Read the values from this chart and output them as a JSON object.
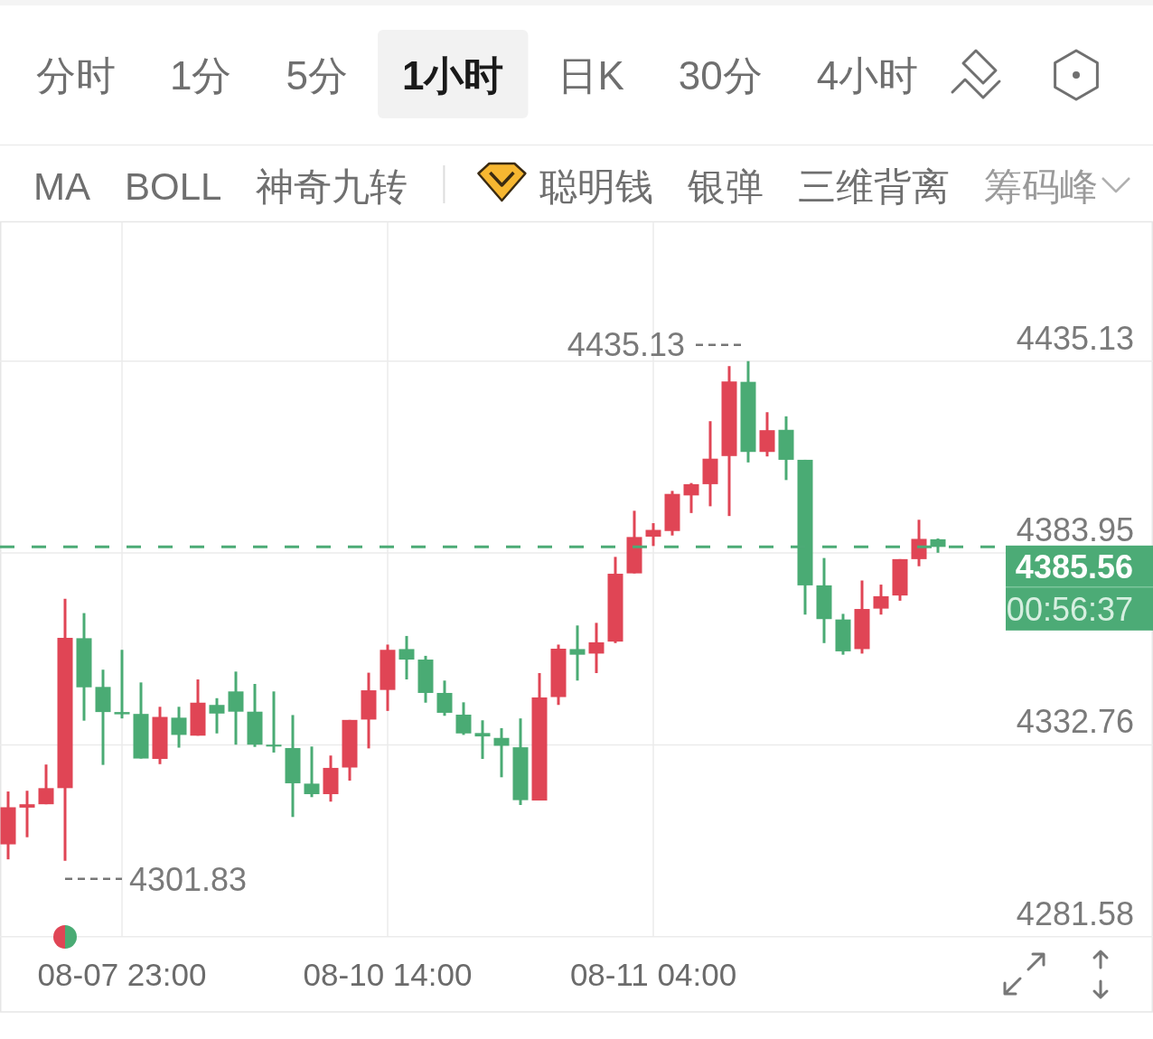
{
  "chart_data": {
    "type": "candlestick",
    "categories": [
      null,
      null,
      null,
      null,
      null,
      null,
      "08-07 23:00",
      null,
      null,
      null,
      null,
      null,
      null,
      null,
      null,
      null,
      null,
      null,
      null,
      null,
      "08-10 14:00",
      null,
      null,
      null,
      null,
      null,
      null,
      null,
      null,
      null,
      null,
      null,
      null,
      null,
      "08-11 04:00",
      null,
      null,
      null,
      null,
      null,
      null,
      null,
      null,
      null,
      null,
      null,
      null,
      null,
      null,
      null
    ],
    "ohlc": [
      [
        4306.2,
        4320.3,
        4302.2,
        4316.1
      ],
      [
        4316.0,
        4320.5,
        4308.1,
        4316.9
      ],
      [
        4316.9,
        4327.5,
        4316.9,
        4321.2
      ],
      [
        4321.2,
        4371.7,
        4301.83,
        4361.3
      ],
      [
        4361.2,
        4367.9,
        4339.2,
        4348.1
      ],
      [
        4348.2,
        4352.8,
        4327.4,
        4341.5
      ],
      [
        4341.5,
        4358.1,
        4339.8,
        4340.9
      ],
      [
        4341.0,
        4349.4,
        4329.1,
        4329.1
      ],
      [
        4329.0,
        4342.9,
        4327.6,
        4340.2
      ],
      [
        4340.0,
        4342.9,
        4332.0,
        4335.4
      ],
      [
        4335.2,
        4350.2,
        4335.2,
        4344.0
      ],
      [
        4343.4,
        4345.2,
        4335.8,
        4341.1
      ],
      [
        4347.0,
        4352.3,
        4332.8,
        4341.6
      ],
      [
        4341.6,
        4349.0,
        4332.2,
        4332.8
      ],
      [
        4332.8,
        4347.0,
        4330.7,
        4332.3
      ],
      [
        4331.9,
        4340.7,
        4313.5,
        4322.5
      ],
      [
        4322.4,
        4332.3,
        4318.8,
        4319.6
      ],
      [
        4319.6,
        4329.9,
        4317.6,
        4326.6
      ],
      [
        4326.7,
        4339.4,
        4323.2,
        4339.4
      ],
      [
        4339.5,
        4352.0,
        4331.8,
        4347.3
      ],
      [
        4347.4,
        4359.5,
        4341.8,
        4358.1
      ],
      [
        4358.3,
        4361.8,
        4350.2,
        4355.5
      ],
      [
        4355.5,
        4356.5,
        4344.0,
        4346.6
      ],
      [
        4346.6,
        4349.9,
        4340.5,
        4341.3
      ],
      [
        4340.8,
        4344.1,
        4335.4,
        4335.8
      ],
      [
        4335.9,
        4339.3,
        4329.0,
        4335.0
      ],
      [
        4334.6,
        4337.2,
        4324.1,
        4332.5
      ],
      [
        4332.1,
        4339.8,
        4316.7,
        4318.0
      ],
      [
        4317.9,
        4351.9,
        4317.9,
        4345.4
      ],
      [
        4345.5,
        4359.5,
        4343.4,
        4358.4
      ],
      [
        4358.3,
        4364.6,
        4349.9,
        4356.8
      ],
      [
        4357.1,
        4365.3,
        4351.9,
        4360.1
      ],
      [
        4360.3,
        4382.9,
        4359.9,
        4378.4
      ],
      [
        4378.5,
        4395.2,
        4378.5,
        4388.2
      ],
      [
        4388.3,
        4391.9,
        4385.8,
        4390.1
      ],
      [
        4389.8,
        4400.5,
        4388.6,
        4399.7
      ],
      [
        4399.3,
        4402.6,
        4394.6,
        4402.3
      ],
      [
        4402.3,
        4419.1,
        4396.4,
        4409.1
      ],
      [
        4409.8,
        4433.8,
        4393.8,
        4429.7
      ],
      [
        4429.6,
        4435.13,
        4408.1,
        4410.9
      ],
      [
        4410.9,
        4421.5,
        4409.7,
        4416.7
      ],
      [
        4416.8,
        4420.4,
        4403.4,
        4408.8
      ],
      [
        4408.8,
        4408.8,
        4367.5,
        4375.3
      ],
      [
        4375.3,
        4382.6,
        4359.9,
        4366.3
      ],
      [
        4366.2,
        4367.7,
        4356.8,
        4357.7
      ],
      [
        4358.3,
        4376.6,
        4357.1,
        4369.0
      ],
      [
        4369.1,
        4375.5,
        4367.5,
        4372.4
      ],
      [
        4372.6,
        4382.3,
        4371.2,
        4382.3
      ],
      [
        4382.3,
        4392.8,
        4380.4,
        4387.7
      ],
      [
        4387.6,
        4387.8,
        4384.0,
        4385.56
      ]
    ],
    "colors": [
      "#e04555",
      "#e04555",
      "#e04555",
      "#e04555",
      "#4aab74",
      "#4aab74",
      "#4aab74",
      "#4aab74",
      "#e04555",
      "#4aab74",
      "#e04555",
      "#4aab74",
      "#4aab74",
      "#4aab74",
      "#4aab74",
      "#4aab74",
      "#4aab74",
      "#e04555",
      "#e04555",
      "#e04555",
      "#e04555",
      "#4aab74",
      "#4aab74",
      "#4aab74",
      "#4aab74",
      "#4aab74",
      "#4aab74",
      "#4aab74",
      "#e04555",
      "#e04555",
      "#4aab74",
      "#e04555",
      "#e04555",
      "#e04555",
      "#e04555",
      "#e04555",
      "#e04555",
      "#e04555",
      "#e04555",
      "#4aab74",
      "#e04555",
      "#4aab74",
      "#4aab74",
      "#4aab74",
      "#4aab74",
      "#e04555",
      "#e04555",
      "#e04555",
      "#e04555",
      "#4aab74"
    ],
    "ylim": [
      4281.58,
      4472.3
    ],
    "yticks": [
      4281.58,
      4332.76,
      4383.95,
      4435.13
    ],
    "grid": true,
    "ref_lines": [
      {
        "axis": "y",
        "value": 4385.56,
        "label": "4385.56",
        "color": "#4cab76",
        "line_style": "dashed"
      }
    ],
    "annotations": [
      "4435.13",
      "4301.83",
      "00:56:37",
      "分时",
      "1分",
      "5分",
      "1小时",
      "日K",
      "30分",
      "4小时",
      "MA",
      "BOLL",
      "神奇九转",
      "聪明钱",
      "银弹",
      "三维背离",
      "筹码峰"
    ]
  }
}
